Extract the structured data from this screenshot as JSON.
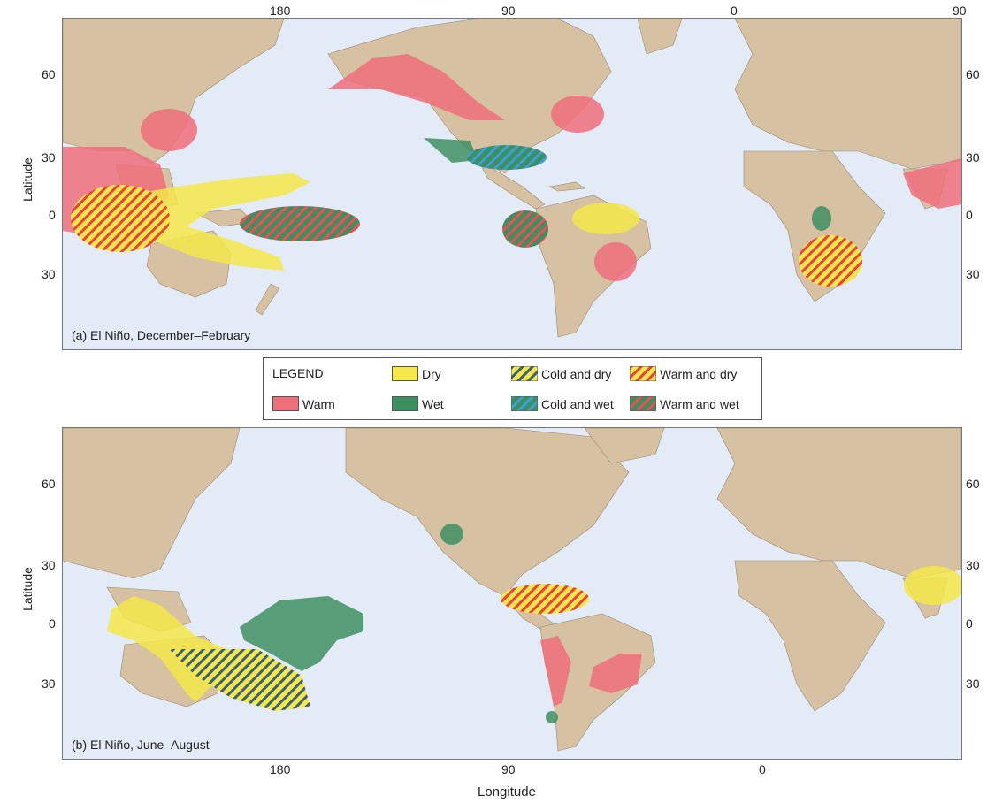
{
  "panels": [
    {
      "caption": "(a) El Niño, December–February",
      "top_ticks": [
        "180",
        "90",
        "0",
        "90"
      ],
      "lat_ticks": [
        "60",
        "30",
        "0",
        "30"
      ]
    },
    {
      "caption": "(b) El Niño, June–August",
      "bottom_ticks": [
        "180",
        "90",
        "0"
      ],
      "lat_ticks": [
        "60",
        "30",
        "0",
        "30"
      ]
    }
  ],
  "axis": {
    "y_label": "Latitude",
    "x_label": "Longitude"
  },
  "legend": {
    "title": "LEGEND",
    "items": [
      {
        "key": "warm",
        "label": "Warm",
        "color": "#ee6f7a"
      },
      {
        "key": "dry",
        "label": "Dry",
        "color": "#f5e84a"
      },
      {
        "key": "wet",
        "label": "Wet",
        "color": "#3e8f60"
      },
      {
        "key": "cold_dry",
        "label": "Cold and dry",
        "color1": "#f5e84a",
        "color2": "#3a5f7a"
      },
      {
        "key": "cold_wet",
        "label": "Cold and wet",
        "color1": "#3aa1d8",
        "color2": "#3e8f60"
      },
      {
        "key": "warm_dry",
        "label": "Warm and dry",
        "color1": "#f5e84a",
        "color2": "#ee3f3f"
      },
      {
        "key": "warm_wet",
        "label": "Warm and wet",
        "color1": "#ee4f55",
        "color2": "#3e8f60"
      }
    ]
  },
  "colors": {
    "ocean": "#e3ebf6",
    "land": "#d6c2a3"
  }
}
